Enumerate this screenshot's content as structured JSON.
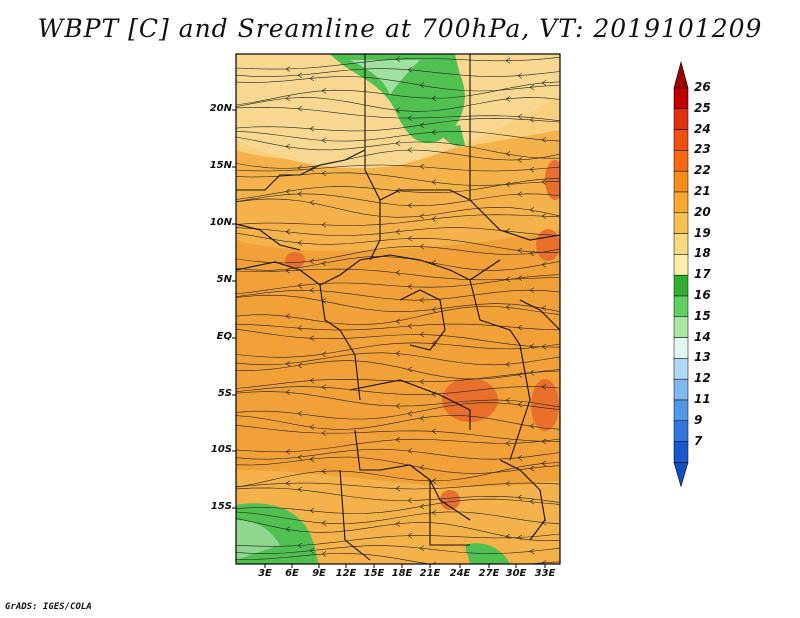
{
  "title": "WBPT [C] and Sreamline at 700hPa, VT: 2019101209",
  "credit": "GrADS: IGES/COLA",
  "map": {
    "lon_range": [
      0,
      35
    ],
    "lat_range": [
      -20,
      24
    ],
    "lat_ticks": [
      "20N",
      "15N",
      "10N",
      "5N",
      "EQ",
      "5S",
      "10S",
      "15S"
    ],
    "lon_ticks": [
      "3E",
      "6E",
      "9E",
      "12E",
      "15E",
      "18E",
      "21E",
      "24E",
      "27E",
      "30E",
      "33E"
    ]
  },
  "colorbar": {
    "labels": [
      "26",
      "25",
      "24",
      "23",
      "22",
      "21",
      "20",
      "19",
      "18",
      "17",
      "16",
      "15",
      "14",
      "13",
      "12",
      "11",
      "9",
      "7"
    ],
    "colors": [
      "#c00000",
      "#e03010",
      "#f05010",
      "#f86a10",
      "#f88c18",
      "#f8a830",
      "#f8c050",
      "#f8d880",
      "#f8f0a8",
      "#30b030",
      "#60d060",
      "#a8e8a0",
      "#e0f8f0",
      "#b0d8f8",
      "#80b8f0",
      "#5098e8",
      "#3078e0",
      "#1858d0"
    ],
    "top_arrow": "#a00000",
    "bottom_arrow": "#1050c0"
  },
  "legend_colors": {
    "green": "#50c050",
    "light_green": "#90d890",
    "pale": "#f8e6a0",
    "orange": "#f3a030",
    "red": "#e8602a"
  }
}
